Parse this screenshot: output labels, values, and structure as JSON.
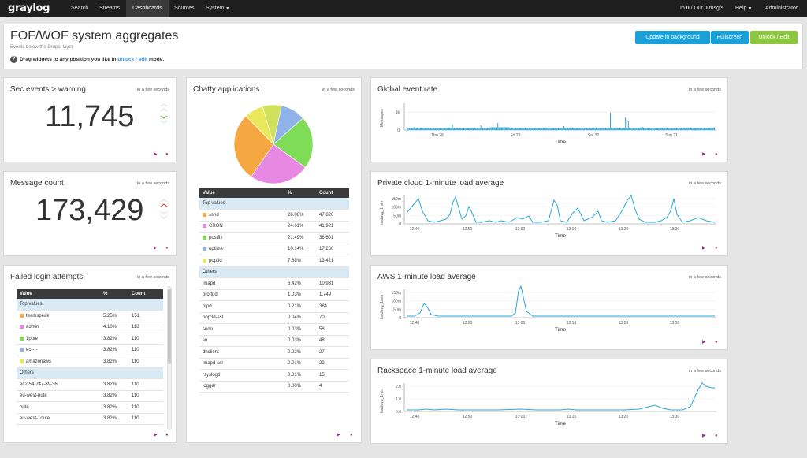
{
  "nav": {
    "logo": "graylog",
    "items": [
      "Search",
      "Streams",
      "Dashboards",
      "Sources",
      "System"
    ],
    "active": "Dashboards",
    "throughput_in_label": "In ",
    "throughput_in": "0",
    "throughput_sep": " / Out ",
    "throughput_out": "0",
    "throughput_unit": " msg/s",
    "help": "Help",
    "user": "Administrator"
  },
  "header": {
    "title": "FOF/WOF system aggregates",
    "subtitle": "Events below the Drupal layer",
    "hint_pre": "Drag widgets to any position you like in",
    "hint_link": "unlock / edit",
    "hint_post": "mode.",
    "buttons": {
      "update": "Update in background",
      "fullscreen": "Fullscreen",
      "unlock": "Unlock / Edit"
    },
    "colors": {
      "update": "#1aa0d8",
      "fullscreen": "#1aa0d8",
      "unlock": "#8cc63f"
    }
  },
  "widgets": {
    "sec_events": {
      "title": "Sec events > warning",
      "time": "in a few seconds",
      "value": "11,745",
      "trend": "down",
      "trend_color": "#7ab648"
    },
    "message_count": {
      "title": "Message count",
      "time": "in a few seconds",
      "value": "173,429",
      "trend": "up",
      "trend_color": "#d9534f"
    },
    "failed_login": {
      "title": "Failed login attempts",
      "time": "in a few seconds",
      "headers": [
        "Value",
        "%",
        "Count"
      ],
      "top_label": "Top values",
      "top": [
        {
          "value": "teamspeak",
          "pct": "5.25%",
          "count": "151",
          "color": "#f5a742"
        },
        {
          "value": "admin",
          "pct": "4.10%",
          "count": "118",
          "color": "#e788e3"
        },
        {
          "value": "1pute",
          "pct": "3.82%",
          "count": "110",
          "color": "#7fdc57"
        },
        {
          "value": "ec----",
          "pct": "3.82%",
          "count": "110",
          "color": "#8fb3e8"
        },
        {
          "value": "amazonaws",
          "pct": "3.82%",
          "count": "110",
          "color": "#e8e85a"
        }
      ],
      "others_label": "Others",
      "others": [
        {
          "value": "ec2-54-247-89-36",
          "pct": "3.82%",
          "count": "110"
        },
        {
          "value": "eu-west-pute",
          "pct": "3.82%",
          "count": "110"
        },
        {
          "value": "pute",
          "pct": "3.82%",
          "count": "110"
        },
        {
          "value": "eu-west-1oute",
          "pct": "3.82%",
          "count": "110"
        }
      ]
    },
    "chatty": {
      "title": "Chatty applications",
      "time": "in a few seconds",
      "headers": [
        "Value",
        "%",
        "Count"
      ],
      "top_label": "Top values",
      "top": [
        {
          "value": "sshd",
          "pct": "28.08%",
          "count": "47,820",
          "color": "#f5a742"
        },
        {
          "value": "CRON",
          "pct": "24.61%",
          "count": "41,921",
          "color": "#e788e3"
        },
        {
          "value": "postfix",
          "pct": "21.49%",
          "count": "36,601",
          "color": "#7fdc57"
        },
        {
          "value": "uptime",
          "pct": "10.14%",
          "count": "17,266",
          "color": "#8fb3e8"
        },
        {
          "value": "pop3d",
          "pct": "7.88%",
          "count": "13,421",
          "color": "#e8e85a"
        }
      ],
      "others_label": "Others",
      "others": [
        {
          "value": "imapd",
          "pct": "6.42%",
          "count": "10,931"
        },
        {
          "value": "proftpd",
          "pct": "1.03%",
          "count": "1,749"
        },
        {
          "value": "ntpd",
          "pct": "0.21%",
          "count": "364"
        },
        {
          "value": "pop3d-ssl",
          "pct": "0.04%",
          "count": "70"
        },
        {
          "value": "sudo",
          "pct": "0.03%",
          "count": "58"
        },
        {
          "value": "su",
          "pct": "0.03%",
          "count": "48"
        },
        {
          "value": "dhclient",
          "pct": "0.02%",
          "count": "27"
        },
        {
          "value": "imapd-ssl",
          "pct": "0.01%",
          "count": "22"
        },
        {
          "value": "rsyslogd",
          "pct": "0.01%",
          "count": "15"
        },
        {
          "value": "logger",
          "pct": "0.00%",
          "count": "4"
        }
      ],
      "pie_colors": [
        "#cfe05a",
        "#8fb3e8",
        "#7fdc57",
        "#e788e3",
        "#f5a742",
        "#e8e85a"
      ]
    },
    "global_rate": {
      "title": "Global event rate",
      "time": "in a few seconds",
      "ylabel": "Messages",
      "xlabel": "Time",
      "yticks": [
        "1k",
        "0"
      ],
      "xticks": [
        "Thu 28",
        "Fri 29",
        "Sat 30",
        "Sun 31"
      ]
    },
    "private_cloud": {
      "title": "Private cloud 1-minute load average",
      "time": "in a few seconds",
      "ylabel": "loadavg_1min",
      "xlabel": "Time",
      "yticks": [
        "150m",
        "100m",
        "50m",
        "0"
      ],
      "xticks": [
        "12:40",
        "12:50",
        "13:00",
        "13:10",
        "13:20",
        "13:30"
      ]
    },
    "aws": {
      "title": "AWS 1-minute load average",
      "time": "in a few seconds",
      "ylabel": "loadavg_1min",
      "xlabel": "Time",
      "yticks": [
        "150m",
        "100m",
        "50m",
        "0"
      ],
      "xticks": [
        "12:40",
        "12:50",
        "13:00",
        "13:10",
        "13:20",
        "13:30"
      ]
    },
    "rackspace": {
      "title": "Rackspace 1-minute load average",
      "time": "in a few seconds",
      "ylabel": "loadavg_1min",
      "xlabel": "Time",
      "yticks": [
        "2.0",
        "1.0",
        "0.0"
      ],
      "xticks": [
        "12:40",
        "12:50",
        "13:00",
        "13:10",
        "13:20",
        "13:30"
      ]
    }
  },
  "colors": {
    "line": "#2aa9d6",
    "footer_icon": "#a0307a",
    "table_header": "#3a3a3a",
    "group_row": "#d9eaf7"
  }
}
